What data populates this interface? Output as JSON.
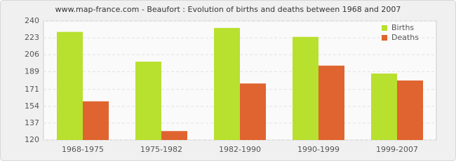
{
  "chart_data": {
    "type": "bar",
    "title": "www.map-france.com - Beaufort : Evolution of births and deaths between 1968 and 2007",
    "categories": [
      "1968-1975",
      "1975-1982",
      "1982-1990",
      "1990-1999",
      "1999-2007"
    ],
    "series": [
      {
        "name": "Births",
        "color": "#b8e02e",
        "values": [
          229,
          199,
          233,
          224,
          187
        ]
      },
      {
        "name": "Deaths",
        "color": "#e0642f",
        "values": [
          159,
          129,
          177,
          195,
          180
        ]
      }
    ],
    "ylim": [
      120,
      240
    ],
    "yticks": [
      120,
      137,
      154,
      171,
      189,
      206,
      223,
      240
    ],
    "grid": true,
    "legend": "top-right"
  }
}
